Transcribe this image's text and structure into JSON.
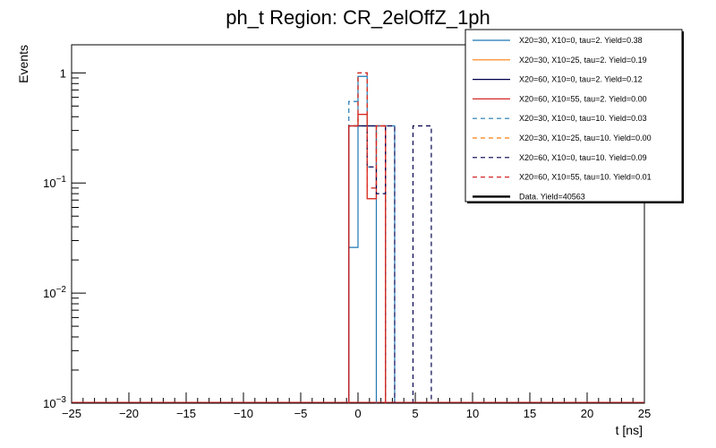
{
  "chart_data": {
    "type": "histogram-step",
    "title": "ph_t Region: CR_2elOffZ_1ph",
    "xlabel": "t [ns]",
    "ylabel": "Events",
    "xlim": [
      -25,
      25
    ],
    "ylim": [
      0.001,
      1.8
    ],
    "yscale": "log",
    "bin_width": 0.8,
    "x_ticks": [
      "−25",
      "−20",
      "−15",
      "−10",
      "−5",
      "0",
      "5",
      "10",
      "15",
      "20",
      "25"
    ],
    "y_ticks": [
      {
        "value": 0.001,
        "base": "10",
        "exp": "−3"
      },
      {
        "value": 0.01,
        "base": "10",
        "exp": "−2"
      },
      {
        "value": 0.1,
        "base": "10",
        "exp": "−1"
      },
      {
        "value": 1,
        "base": "1",
        "exp": ""
      }
    ],
    "legend_position": "top-right",
    "series": [
      {
        "label": "X20=30, X10=0, tau=2. Yield=0.38",
        "color": "#1f77b4",
        "style": "solid",
        "bins": [
          [
            -0.8,
            0.026
          ],
          [
            0.0,
            0.93
          ],
          [
            0.8,
            0.33
          ]
        ]
      },
      {
        "label": "X20=30, X10=25, tau=2. Yield=0.19",
        "color": "#ff7f0e",
        "style": "solid",
        "bins": [
          [
            -0.8,
            0.33
          ],
          [
            0.0,
            0.42
          ],
          [
            0.8,
            0.072
          ],
          [
            1.6,
            0.33
          ]
        ]
      },
      {
        "label": "X20=60, X10=0, tau=2. Yield=0.12",
        "color": "#00004d",
        "style": "solid",
        "bins": [
          [
            -0.8,
            0.33
          ],
          [
            0.0,
            0.33
          ],
          [
            0.8,
            0.33
          ],
          [
            1.6,
            0.33
          ]
        ]
      },
      {
        "label": "X20=60, X10=55, tau=2. Yield=0.00",
        "color": "#d62728",
        "style": "solid",
        "bins": [
          [
            -0.8,
            0.33
          ],
          [
            0.0,
            0.42
          ],
          [
            0.8,
            0.072
          ],
          [
            1.6,
            0.33
          ]
        ]
      },
      {
        "label": "X20=30, X10=0, tau=10. Yield=0.03",
        "color": "#1f77b4",
        "style": "dashed",
        "bins": [
          [
            -0.8,
            0.55
          ],
          [
            0.0,
            1.0
          ],
          [
            0.8,
            0.14
          ],
          [
            1.6,
            0.33
          ],
          [
            2.4,
            0.33
          ]
        ]
      },
      {
        "label": "X20=30, X10=25, tau=10. Yield=0.00",
        "color": "#ff7f0e",
        "style": "dashed",
        "bins": [
          [
            -0.8,
            0.33
          ],
          [
            0.0,
            1.0
          ],
          [
            0.8,
            0.09
          ],
          [
            1.6,
            0.33
          ]
        ]
      },
      {
        "label": "X20=60, X10=0, tau=10. Yield=0.09",
        "color": "#00004d",
        "style": "dashed",
        "bins": [
          [
            -0.8,
            0.33
          ],
          [
            0.0,
            0.33
          ],
          [
            0.8,
            0.14
          ],
          [
            1.6,
            0.08
          ],
          [
            2.4,
            0.33
          ],
          [
            4.8,
            0.33
          ],
          [
            5.6,
            0.33
          ]
        ]
      },
      {
        "label": "X20=60, X10=55, tau=10. Yield=0.01",
        "color": "#d62728",
        "style": "dashed",
        "bins": [
          [
            -0.8,
            0.33
          ],
          [
            0.0,
            1.0
          ],
          [
            0.8,
            0.09
          ],
          [
            1.6,
            0.33
          ]
        ]
      },
      {
        "label": "Data. Yield=40563",
        "color": "#000000",
        "style": "solid-thick",
        "bins": []
      }
    ]
  }
}
